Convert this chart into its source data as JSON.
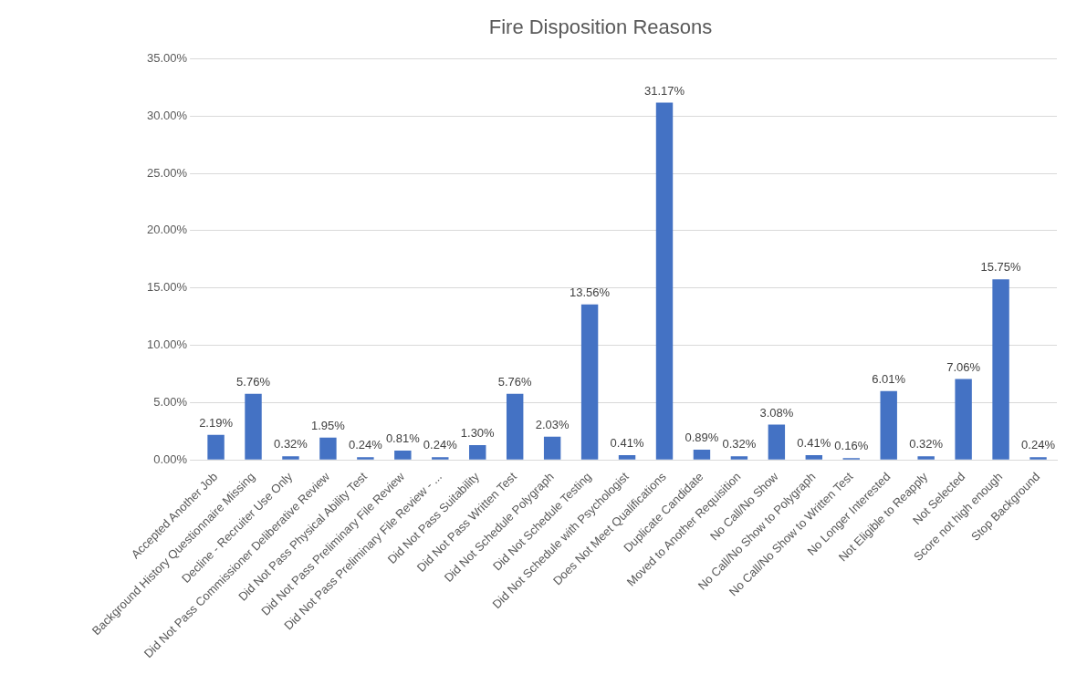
{
  "chart_data": {
    "type": "bar",
    "title": "Fire Disposition Reasons",
    "categories": [
      "Accepted Another Job",
      "Background History Questionnaire Missing",
      "Decline - Recruiter Use Only",
      "Did Not Pass Commissioner Deliberative Review",
      "Did Not Pass Physical Ability Test",
      "Did Not Pass Preliminary File Review",
      "Did Not Pass Preliminary File Review - ...",
      "Did Not Pass Suitability",
      "Did Not Pass Written Test",
      "Did Not Schedule Polygraph",
      "Did Not Schedule Testing",
      "Did Not Schedule with Psychologist",
      "Does Not Meet Qualifications",
      "Duplicate Candidate",
      "Moved to Another Requisition",
      "No Call/No Show",
      "No Call/No Show to Polygraph",
      "No Call/No Show to Written Test",
      "No Longer Interested",
      "Not Eligible to Reapply",
      "Not Selected",
      "Score not high enough",
      "Stop Background"
    ],
    "values": [
      2.19,
      5.76,
      0.32,
      1.95,
      0.24,
      0.81,
      0.24,
      1.3,
      5.76,
      2.03,
      13.56,
      0.41,
      31.17,
      0.89,
      0.32,
      3.08,
      0.41,
      0.16,
      6.01,
      0.32,
      7.06,
      15.75,
      0.24
    ],
    "value_labels": [
      "2.19%",
      "5.76%",
      "0.32%",
      "1.95%",
      "0.24%",
      "0.81%",
      "0.24%",
      "1.30%",
      "5.76%",
      "2.03%",
      "13.56%",
      "0.41%",
      "31.17%",
      "0.89%",
      "0.32%",
      "3.08%",
      "0.41%",
      "0.16%",
      "6.01%",
      "0.32%",
      "7.06%",
      "15.75%",
      "0.24%"
    ],
    "color": "#4472c4",
    "ylim": [
      0,
      35
    ],
    "yticks": [
      {
        "value": 0,
        "label": "0.00%"
      },
      {
        "value": 5,
        "label": "5.00%"
      },
      {
        "value": 10,
        "label": "10.00%"
      },
      {
        "value": 15,
        "label": "15.00%"
      },
      {
        "value": 20,
        "label": "20.00%"
      },
      {
        "value": 25,
        "label": "25.00%"
      },
      {
        "value": 30,
        "label": "30.00%"
      },
      {
        "value": 35,
        "label": "35.00%"
      }
    ],
    "grid": "y",
    "legend": false
  }
}
